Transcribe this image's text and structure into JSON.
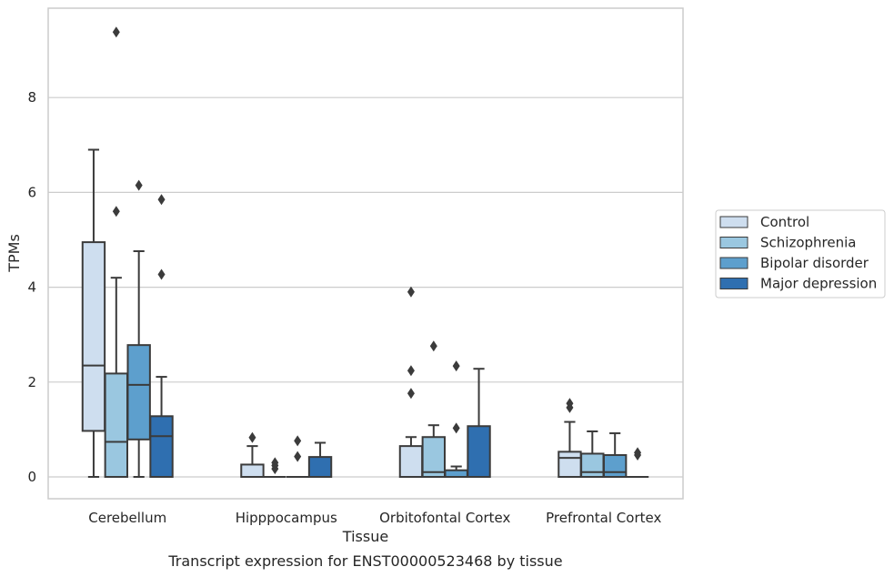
{
  "chart_data": {
    "type": "box",
    "caption": "Transcript expression for ENST00000523468 by tissue",
    "xlabel": "Tissue",
    "ylabel": "TPMs",
    "ylim": [
      -0.45,
      9.9
    ],
    "yticks": [
      0,
      2,
      4,
      6,
      8
    ],
    "grid": "horizontal",
    "legend_position": "right",
    "categories": [
      "Cerebellum",
      "Hipppocampus",
      "Orbitofontal Cortex",
      "Prefrontal Cortex"
    ],
    "series": [
      {
        "name": "Control",
        "color": "#cedeef",
        "boxes": [
          {
            "whislo": 0,
            "q1": 0.97,
            "med": 2.35,
            "q3": 4.95,
            "whishi": 6.9,
            "fliers": []
          },
          {
            "whislo": 0,
            "q1": 0,
            "med": 0,
            "q3": 0.26,
            "whishi": 0.65,
            "fliers": [
              0.83
            ]
          },
          {
            "whislo": 0,
            "q1": 0,
            "med": 0,
            "q3": 0.65,
            "whishi": 0.84,
            "fliers": [
              1.76,
              2.24,
              3.9
            ]
          },
          {
            "whislo": 0,
            "q1": 0,
            "med": 0.4,
            "q3": 0.53,
            "whishi": 1.16,
            "fliers": [
              1.46,
              1.55
            ]
          }
        ]
      },
      {
        "name": "Schizophrenia",
        "color": "#9ac7e0",
        "boxes": [
          {
            "whislo": 0,
            "q1": 0,
            "med": 0.74,
            "q3": 2.18,
            "whishi": 4.2,
            "fliers": [
              5.6,
              9.38
            ]
          },
          {
            "whislo": 0,
            "q1": 0,
            "med": 0,
            "q3": 0,
            "whishi": 0,
            "fliers": [
              0.17,
              0.24,
              0.3
            ]
          },
          {
            "whislo": 0,
            "q1": 0,
            "med": 0.1,
            "q3": 0.84,
            "whishi": 1.09,
            "fliers": [
              2.76
            ]
          },
          {
            "whislo": 0,
            "q1": 0,
            "med": 0.1,
            "q3": 0.49,
            "whishi": 0.96,
            "fliers": []
          }
        ]
      },
      {
        "name": "Bipolar disorder",
        "color": "#5d9fcd",
        "boxes": [
          {
            "whislo": 0,
            "q1": 0.79,
            "med": 1.94,
            "q3": 2.78,
            "whishi": 4.76,
            "fliers": [
              6.15
            ]
          },
          {
            "whislo": 0,
            "q1": 0,
            "med": 0,
            "q3": 0,
            "whishi": 0,
            "fliers": [
              0.43,
              0.76
            ]
          },
          {
            "whislo": 0,
            "q1": 0,
            "med": 0,
            "q3": 0.14,
            "whishi": 0.22,
            "fliers": [
              1.03,
              2.34
            ]
          },
          {
            "whislo": 0,
            "q1": 0,
            "med": 0.1,
            "q3": 0.46,
            "whishi": 0.92,
            "fliers": []
          }
        ]
      },
      {
        "name": "Major depression",
        "color": "#2f6fb0",
        "boxes": [
          {
            "whislo": 0,
            "q1": 0,
            "med": 0.86,
            "q3": 1.28,
            "whishi": 2.11,
            "fliers": [
              4.27,
              5.85
            ]
          },
          {
            "whislo": 0,
            "q1": 0,
            "med": 0,
            "q3": 0.42,
            "whishi": 0.72,
            "fliers": []
          },
          {
            "whislo": 0,
            "q1": 0,
            "med": 0,
            "q3": 1.07,
            "whishi": 2.28,
            "fliers": []
          },
          {
            "whislo": 0,
            "q1": 0,
            "med": 0,
            "q3": 0,
            "whishi": 0,
            "fliers": [
              0.46,
              0.51
            ]
          }
        ]
      }
    ]
  }
}
